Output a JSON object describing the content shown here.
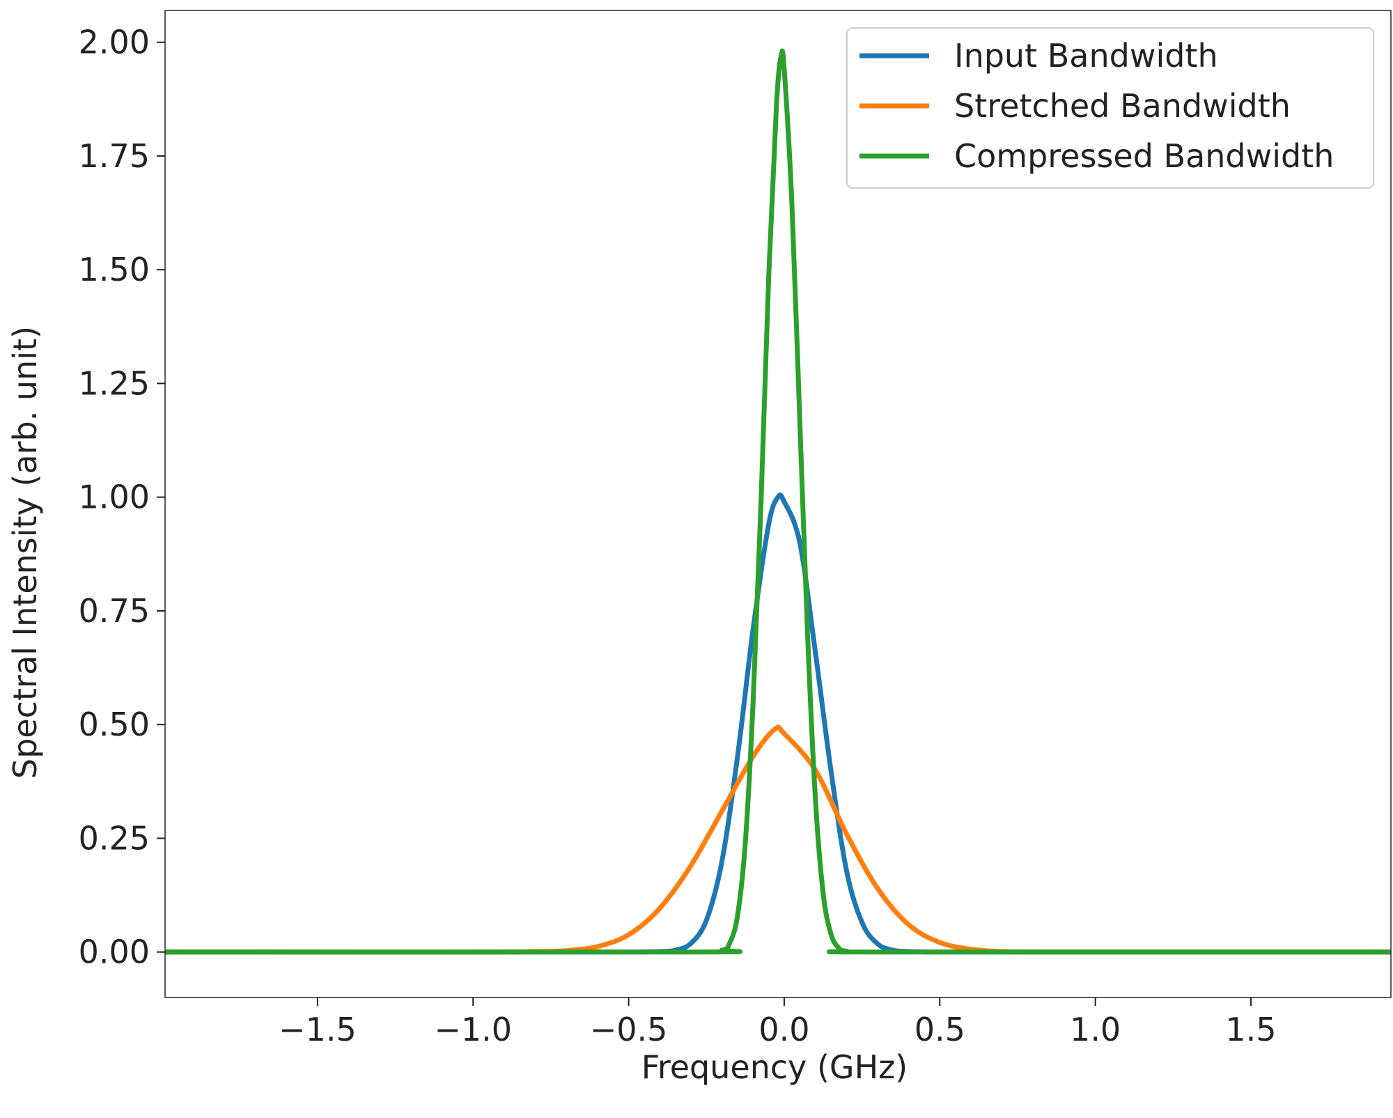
{
  "chart_data": {
    "type": "line",
    "title": "",
    "xlabel": "Frequency (GHz)",
    "ylabel": "Spectral Intensity (arb. unit)",
    "xlim": [
      -1.99,
      1.95
    ],
    "ylim": [
      -0.1,
      2.07
    ],
    "x_ticks": [
      -1.5,
      -1.0,
      -0.5,
      0.0,
      0.5,
      1.0,
      1.5
    ],
    "x_tick_labels": [
      "−1.5",
      "−1.0",
      "−0.5",
      "0.0",
      "0.5",
      "1.0",
      "1.5"
    ],
    "y_ticks": [
      0.0,
      0.25,
      0.5,
      0.75,
      1.0,
      1.25,
      1.5,
      1.75,
      2.0
    ],
    "y_tick_labels": [
      "0.00",
      "0.25",
      "0.50",
      "0.75",
      "1.00",
      "1.25",
      "1.50",
      "1.75",
      "2.00"
    ],
    "grid": false,
    "legend_position": "top-right",
    "series": [
      {
        "name": "Input Bandwidth",
        "color": "#1f77b4",
        "x": [
          -1.99,
          -0.6,
          -0.5,
          -0.45,
          -0.4,
          -0.35,
          -0.3,
          -0.25,
          -0.2,
          -0.15,
          -0.1,
          -0.05,
          -0.02,
          0.0,
          0.05,
          0.1,
          0.15,
          0.2,
          0.25,
          0.3,
          0.35,
          0.4,
          0.45,
          0.5,
          0.6,
          1.95
        ],
        "y": [
          0.0,
          0.0,
          0.0,
          0.0,
          0.001,
          0.004,
          0.019,
          0.07,
          0.2,
          0.43,
          0.71,
          0.94,
          1.0,
          0.99,
          0.9,
          0.66,
          0.4,
          0.18,
          0.065,
          0.018,
          0.004,
          0.001,
          0.0,
          0.0,
          0.0,
          0.0
        ]
      },
      {
        "name": "Stretched Bandwidth",
        "color": "#ff7f0e",
        "x": [
          -1.99,
          -1.0,
          -0.8,
          -0.7,
          -0.6,
          -0.5,
          -0.4,
          -0.3,
          -0.2,
          -0.1,
          -0.03,
          0.0,
          0.1,
          0.2,
          0.3,
          0.4,
          0.5,
          0.6,
          0.7,
          0.8,
          1.0,
          1.95
        ],
        "y": [
          0.0,
          0.0,
          0.001,
          0.003,
          0.012,
          0.038,
          0.096,
          0.19,
          0.31,
          0.43,
          0.49,
          0.48,
          0.4,
          0.26,
          0.14,
          0.06,
          0.021,
          0.006,
          0.001,
          0.0,
          0.0,
          0.0
        ],
        "ylabel_peak": 0.49
      },
      {
        "name": "Compressed Bandwidth",
        "color": "#2ca02c",
        "x": [
          -1.99,
          -0.3,
          -0.2,
          -0.175,
          -0.15,
          -0.125,
          -0.1,
          -0.075,
          -0.05,
          -0.025,
          -0.01,
          0.0,
          0.025,
          0.05,
          0.075,
          0.1,
          0.125,
          0.15,
          0.175,
          0.2,
          0.3,
          1.95
        ],
        "y": [
          0.0,
          0.0,
          0.004,
          0.02,
          0.08,
          0.24,
          0.55,
          0.98,
          1.48,
          1.86,
          1.97,
          1.94,
          1.64,
          1.17,
          0.7,
          0.34,
          0.13,
          0.04,
          0.009,
          0.002,
          0.0,
          0.0
        ]
      }
    ]
  }
}
